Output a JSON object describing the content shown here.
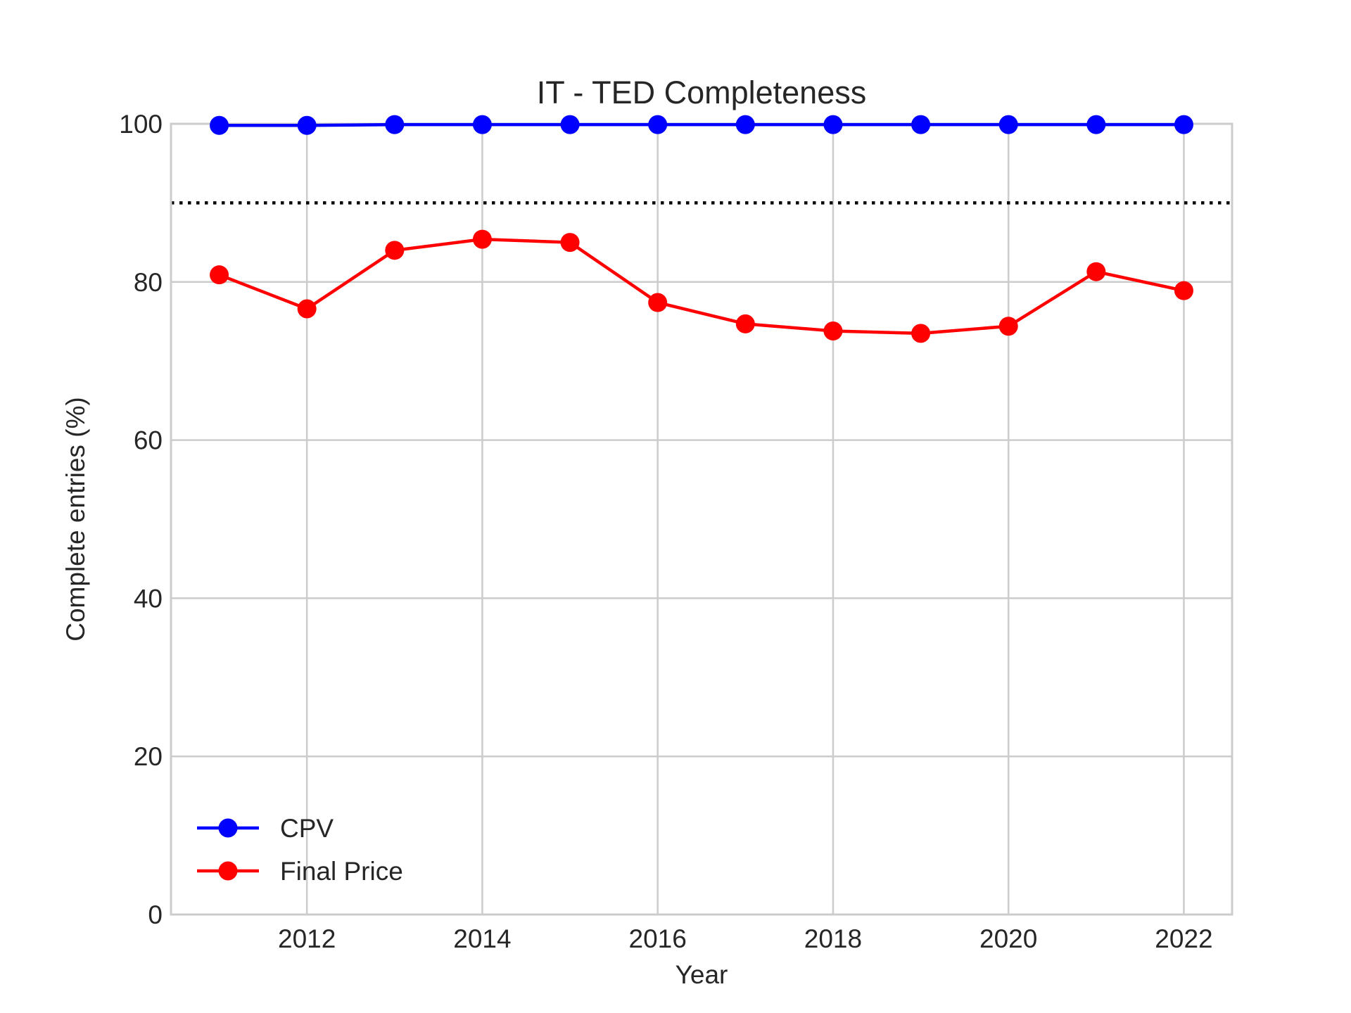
{
  "chart_data": {
    "type": "line",
    "title": "IT - TED Completeness",
    "xlabel": "Year",
    "ylabel": "Complete entries (%)",
    "x": [
      2011,
      2012,
      2013,
      2014,
      2015,
      2016,
      2017,
      2018,
      2019,
      2020,
      2021,
      2022
    ],
    "xlim": [
      2010.45,
      2022.55
    ],
    "ylim": [
      0,
      100
    ],
    "xticks": [
      2012,
      2014,
      2016,
      2018,
      2020,
      2022
    ],
    "yticks": [
      0,
      20,
      40,
      60,
      80,
      100
    ],
    "grid": true,
    "legend_position": "lower-left",
    "reference_line": {
      "y": 90,
      "style": "dotted",
      "color": "#000000"
    },
    "series": [
      {
        "name": "CPV",
        "color": "#0000ff",
        "marker": "circle",
        "values": [
          99.8,
          99.8,
          99.9,
          99.9,
          99.9,
          99.9,
          99.9,
          99.9,
          99.9,
          99.9,
          99.9,
          99.9
        ]
      },
      {
        "name": "Final Price",
        "color": "#ff0000",
        "marker": "circle",
        "values": [
          80.9,
          76.6,
          84.0,
          85.4,
          85.0,
          77.4,
          74.7,
          73.8,
          73.5,
          74.4,
          81.3,
          78.9
        ]
      }
    ]
  }
}
